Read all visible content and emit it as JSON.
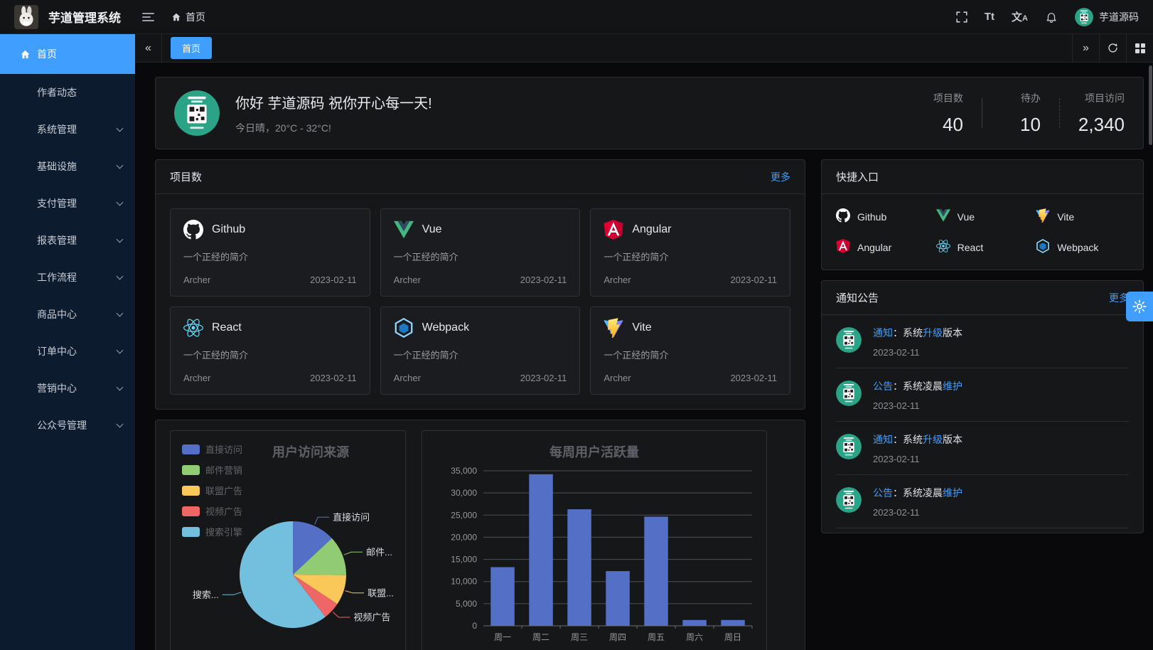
{
  "app": {
    "title": "芋道管理系统",
    "user_name": "芋道源码"
  },
  "header": {
    "breadcrumb_home": "首页"
  },
  "tabbar": {
    "active_tab": "首页"
  },
  "colors": {
    "primary": "#409eff",
    "sidebar_bg": "#0c1b2e"
  },
  "sidebar": {
    "items": [
      {
        "label": "首页",
        "icon": "home-icon",
        "active": true,
        "arrow": false
      },
      {
        "label": "作者动态",
        "active": false,
        "arrow": false
      },
      {
        "label": "系统管理",
        "active": false,
        "arrow": true
      },
      {
        "label": "基础设施",
        "active": false,
        "arrow": true
      },
      {
        "label": "支付管理",
        "active": false,
        "arrow": true
      },
      {
        "label": "报表管理",
        "active": false,
        "arrow": true
      },
      {
        "label": "工作流程",
        "active": false,
        "arrow": true
      },
      {
        "label": "商品中心",
        "active": false,
        "arrow": true
      },
      {
        "label": "订单中心",
        "active": false,
        "arrow": true
      },
      {
        "label": "营销中心",
        "active": false,
        "arrow": true
      },
      {
        "label": "公众号管理",
        "active": false,
        "arrow": true
      }
    ]
  },
  "greeting": {
    "title": "你好 芋道源码 祝你开心每一天!",
    "subtitle": "今日晴，20°C - 32°C!",
    "stats": [
      {
        "label": "项目数",
        "value": "40"
      },
      {
        "label": "待办",
        "value": "10"
      },
      {
        "label": "项目访问",
        "value": "2,340"
      }
    ]
  },
  "projects": {
    "title": "项目数",
    "more_label": "更多",
    "cards": [
      {
        "name": "Github",
        "icon": "github-icon",
        "desc": "一个正经的简介",
        "author": "Archer",
        "date": "2023-02-11"
      },
      {
        "name": "Vue",
        "icon": "vue-icon",
        "desc": "一个正经的简介",
        "author": "Archer",
        "date": "2023-02-11"
      },
      {
        "name": "Angular",
        "icon": "angular-icon",
        "desc": "一个正经的简介",
        "author": "Archer",
        "date": "2023-02-11"
      },
      {
        "name": "React",
        "icon": "react-icon",
        "desc": "一个正经的简介",
        "author": "Archer",
        "date": "2023-02-11"
      },
      {
        "name": "Webpack",
        "icon": "webpack-icon",
        "desc": "一个正经的简介",
        "author": "Archer",
        "date": "2023-02-11"
      },
      {
        "name": "Vite",
        "icon": "vite-icon",
        "desc": "一个正经的简介",
        "author": "Archer",
        "date": "2023-02-11"
      }
    ]
  },
  "shortcuts": {
    "title": "快捷入口",
    "items": [
      {
        "label": "Github",
        "icon": "github-icon"
      },
      {
        "label": "Vue",
        "icon": "vue-icon"
      },
      {
        "label": "Vite",
        "icon": "vite-icon"
      },
      {
        "label": "Angular",
        "icon": "angular-icon"
      },
      {
        "label": "React",
        "icon": "react-icon"
      },
      {
        "label": "Webpack",
        "icon": "webpack-icon"
      }
    ]
  },
  "notices": {
    "title": "通知公告",
    "more_label": "更多",
    "items": [
      {
        "segments": [
          {
            "text": "通知",
            "highlight": true
          },
          {
            "text": "：系统",
            "highlight": false
          },
          {
            "text": "升级",
            "highlight": true
          },
          {
            "text": "版本",
            "highlight": false
          }
        ],
        "date": "2023-02-11"
      },
      {
        "segments": [
          {
            "text": "公告",
            "highlight": true
          },
          {
            "text": "：系统凌晨",
            "highlight": false
          },
          {
            "text": "维护",
            "highlight": true
          }
        ],
        "date": "2023-02-11"
      },
      {
        "segments": [
          {
            "text": "通知",
            "highlight": true
          },
          {
            "text": "：系统",
            "highlight": false
          },
          {
            "text": "升级",
            "highlight": true
          },
          {
            "text": "版本",
            "highlight": false
          }
        ],
        "date": "2023-02-11"
      },
      {
        "segments": [
          {
            "text": "公告",
            "highlight": true
          },
          {
            "text": "：系统凌晨",
            "highlight": false
          },
          {
            "text": "维护",
            "highlight": true
          }
        ],
        "date": "2023-02-11"
      }
    ]
  },
  "chart_data": [
    {
      "type": "pie",
      "title": "用户访问来源",
      "legend_position": "top-left",
      "series": [
        {
          "name": "直接访问",
          "value": 335,
          "color": "#5470C6",
          "callout": "直接访问"
        },
        {
          "name": "邮件营销",
          "value": 310,
          "color": "#91CC75",
          "callout": "邮件..."
        },
        {
          "name": "联盟广告",
          "value": 234,
          "color": "#FAC858",
          "callout": "联盟..."
        },
        {
          "name": "视频广告",
          "value": 135,
          "color": "#EE6666",
          "callout": "视频广告"
        },
        {
          "name": "搜索引擎",
          "value": 1548,
          "color": "#73C0DE",
          "callout": "搜索..."
        }
      ]
    },
    {
      "type": "bar",
      "title": "每周用户活跃量",
      "categories": [
        "周一",
        "周二",
        "周三",
        "周四",
        "周五",
        "周六",
        "周日"
      ],
      "values": [
        13253,
        34235,
        26321,
        12340,
        24643,
        1322,
        1324
      ],
      "bar_color": "#5470C6",
      "ylabel": "",
      "xlabel": "",
      "ylim": [
        0,
        35000
      ],
      "ytick_step": 5000,
      "grid": true
    }
  ]
}
